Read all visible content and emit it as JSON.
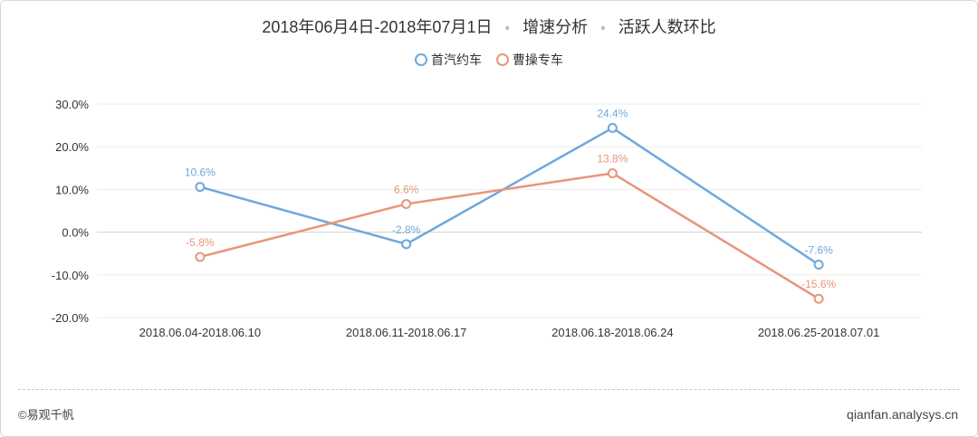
{
  "header": {
    "date_range": "2018年06月4日-2018年07月1日",
    "section": "增速分析",
    "metric": "活跃人数环比",
    "separator": "•"
  },
  "footer": {
    "copyright": "©易观千帆",
    "url": "qianfan.analysys.cn"
  },
  "chart_data": {
    "type": "line",
    "categories": [
      "2018.06.04-2018.06.10",
      "2018.06.11-2018.06.17",
      "2018.06.18-2018.06.24",
      "2018.06.25-2018.07.01"
    ],
    "series": [
      {
        "name": "首汽约车",
        "color": "#6fa8dc",
        "values": [
          10.6,
          -2.8,
          24.4,
          -7.6
        ],
        "labels": [
          "10.6%",
          "-2.8%",
          "24.4%",
          "-7.6%"
        ]
      },
      {
        "name": "曹操专车",
        "color": "#e8957a",
        "values": [
          -5.8,
          6.6,
          13.8,
          -15.6
        ],
        "labels": [
          "-5.8%",
          "6.6%",
          "13.8%",
          "-15.6%"
        ]
      }
    ],
    "yticks": [
      30,
      20,
      10,
      0,
      -10,
      -20
    ],
    "ytick_labels": [
      "30.0%",
      "20.0%",
      "10.0%",
      "0.0%",
      "-10.0%",
      "-20.0%"
    ],
    "ylim": [
      -20,
      30
    ],
    "grid": true,
    "legend_position": "top-center"
  }
}
